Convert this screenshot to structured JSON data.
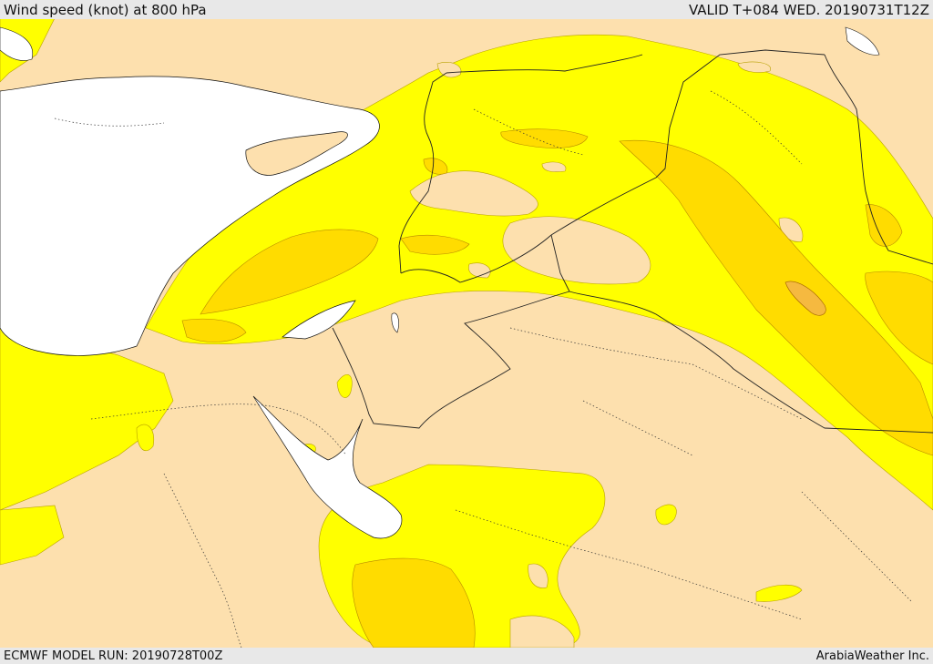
{
  "header": {
    "title": "Wind speed (knot) at 800 hPa",
    "valid": "VALID T+084 WED. 20190731T12Z"
  },
  "footer": {
    "model_run": "ECMWF MODEL RUN: 20190728T00Z",
    "credit": "ArabiaWeather Inc."
  },
  "colors": {
    "land_low": "#fde0ae",
    "band_yellow": "#ffff00",
    "band_gold": "#ffdc00",
    "band_orange": "#f5b940",
    "water": "#ffffff",
    "border": "#222222"
  }
}
